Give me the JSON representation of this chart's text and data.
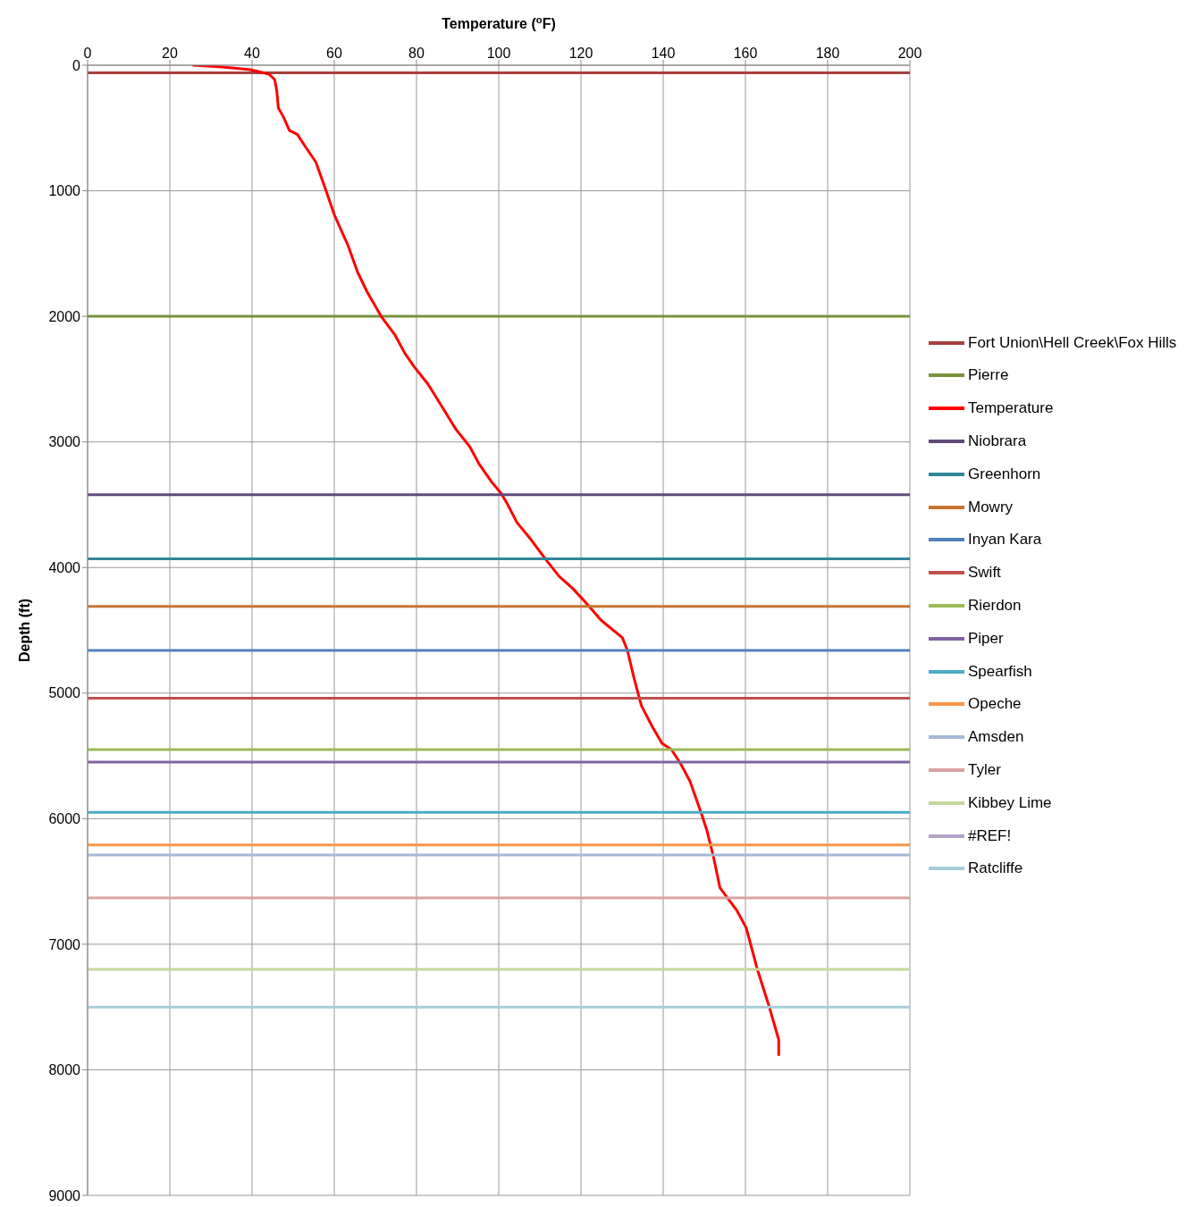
{
  "chart_data": {
    "type": "line",
    "xlabel": "Temperature ($^{o}$F)",
    "ylabel": "Depth (ft)",
    "xlim": [
      0,
      200
    ],
    "xticks": [
      0,
      20,
      40,
      60,
      80,
      100,
      120,
      140,
      160,
      180,
      200
    ],
    "ylim": [
      9000,
      0
    ],
    "yticks": [
      0,
      1000,
      2000,
      3000,
      4000,
      5000,
      6000,
      7000,
      8000,
      9000
    ],
    "grid": true,
    "legend": "right",
    "marker": "none",
    "line_style": "solid",
    "series": [
      {
        "name": "Fort Union\\Hell Creek\\Fox Hills",
        "color": "#a5403d",
        "x": [
          0,
          200
        ],
        "values": [
          60,
          60
        ]
      },
      {
        "name": "Pierre",
        "color": "#77933c",
        "x": [
          0,
          200
        ],
        "values": [
          2000,
          2000
        ]
      },
      {
        "name": "Temperature",
        "color": "#ff0000",
        "x": [
          25.7,
          32.8,
          39.6,
          44.1,
          45.5,
          46,
          46.4,
          47.6,
          49.1,
          51,
          53.2,
          55.5,
          57.8,
          60,
          63.4,
          65.7,
          67.9,
          71.4,
          74.8,
          77.1,
          79.4,
          82.8,
          86.2,
          89.6,
          93,
          95.3,
          98.3,
          100.6,
          102.2,
          104.4,
          107.9,
          111.3,
          114.7,
          118.1,
          122,
          124.9,
          130.1,
          131.3,
          132.9,
          134.7,
          137.4,
          139.7,
          142,
          144.2,
          146.5,
          149.3,
          150.6,
          152.2,
          153.8,
          155.6,
          157.9,
          160.2,
          162.9,
          165.9,
          168.1,
          168.1
        ],
        "values": [
          0,
          14,
          35,
          71,
          114,
          200,
          340,
          410,
          520,
          550,
          660,
          770,
          980,
          1190,
          1440,
          1650,
          1800,
          2000,
          2150,
          2290,
          2400,
          2540,
          2720,
          2900,
          3040,
          3180,
          3320,
          3410,
          3500,
          3640,
          3780,
          3930,
          4070,
          4170,
          4310,
          4420,
          4560,
          4660,
          4880,
          5100,
          5270,
          5400,
          5450,
          5560,
          5700,
          5960,
          6090,
          6300,
          6550,
          6630,
          6730,
          6870,
          7200,
          7510,
          7760,
          7880
        ]
      },
      {
        "name": "Niobrara",
        "color": "#604a7b",
        "x": [
          0,
          200
        ],
        "values": [
          3420,
          3420
        ]
      },
      {
        "name": "Greenhorn",
        "color": "#31859c",
        "x": [
          0,
          200
        ],
        "values": [
          3930,
          3930
        ]
      },
      {
        "name": "Mowry",
        "color": "#c8732f",
        "x": [
          0,
          200
        ],
        "values": [
          4310,
          4310
        ]
      },
      {
        "name": "Inyan Kara",
        "color": "#4f81bd",
        "x": [
          0,
          200
        ],
        "values": [
          4660,
          4660
        ]
      },
      {
        "name": "Swift",
        "color": "#c0504d",
        "x": [
          0,
          200
        ],
        "values": [
          5040,
          5040
        ]
      },
      {
        "name": "Rierdon",
        "color": "#9bbb59",
        "x": [
          0,
          200
        ],
        "values": [
          5450,
          5450
        ]
      },
      {
        "name": "Piper",
        "color": "#8064a2",
        "x": [
          0,
          200
        ],
        "values": [
          5550,
          5550
        ]
      },
      {
        "name": "Spearfish",
        "color": "#4bacc6",
        "x": [
          0,
          200
        ],
        "values": [
          5950,
          5950
        ]
      },
      {
        "name": "Opeche",
        "color": "#f79646",
        "x": [
          0,
          200
        ],
        "values": [
          6210,
          6210
        ]
      },
      {
        "name": "Amsden",
        "color": "#a5b8d8",
        "x": [
          0,
          200
        ],
        "values": [
          6290,
          6290
        ]
      },
      {
        "name": "Tyler",
        "color": "#d9a3a2",
        "x": [
          0,
          200
        ],
        "values": [
          6630,
          6630
        ]
      },
      {
        "name": "Kibbey Lime",
        "color": "#c4d79b",
        "x": [
          0,
          200
        ],
        "values": [
          7200,
          7200
        ]
      },
      {
        "name": "#REF!",
        "color": "#b3a2c7",
        "values": [
          null
        ]
      },
      {
        "name": "Ratcliffe",
        "color": "#a6cdd9",
        "x": [
          0,
          200
        ],
        "values": [
          7500,
          7500
        ]
      }
    ]
  }
}
